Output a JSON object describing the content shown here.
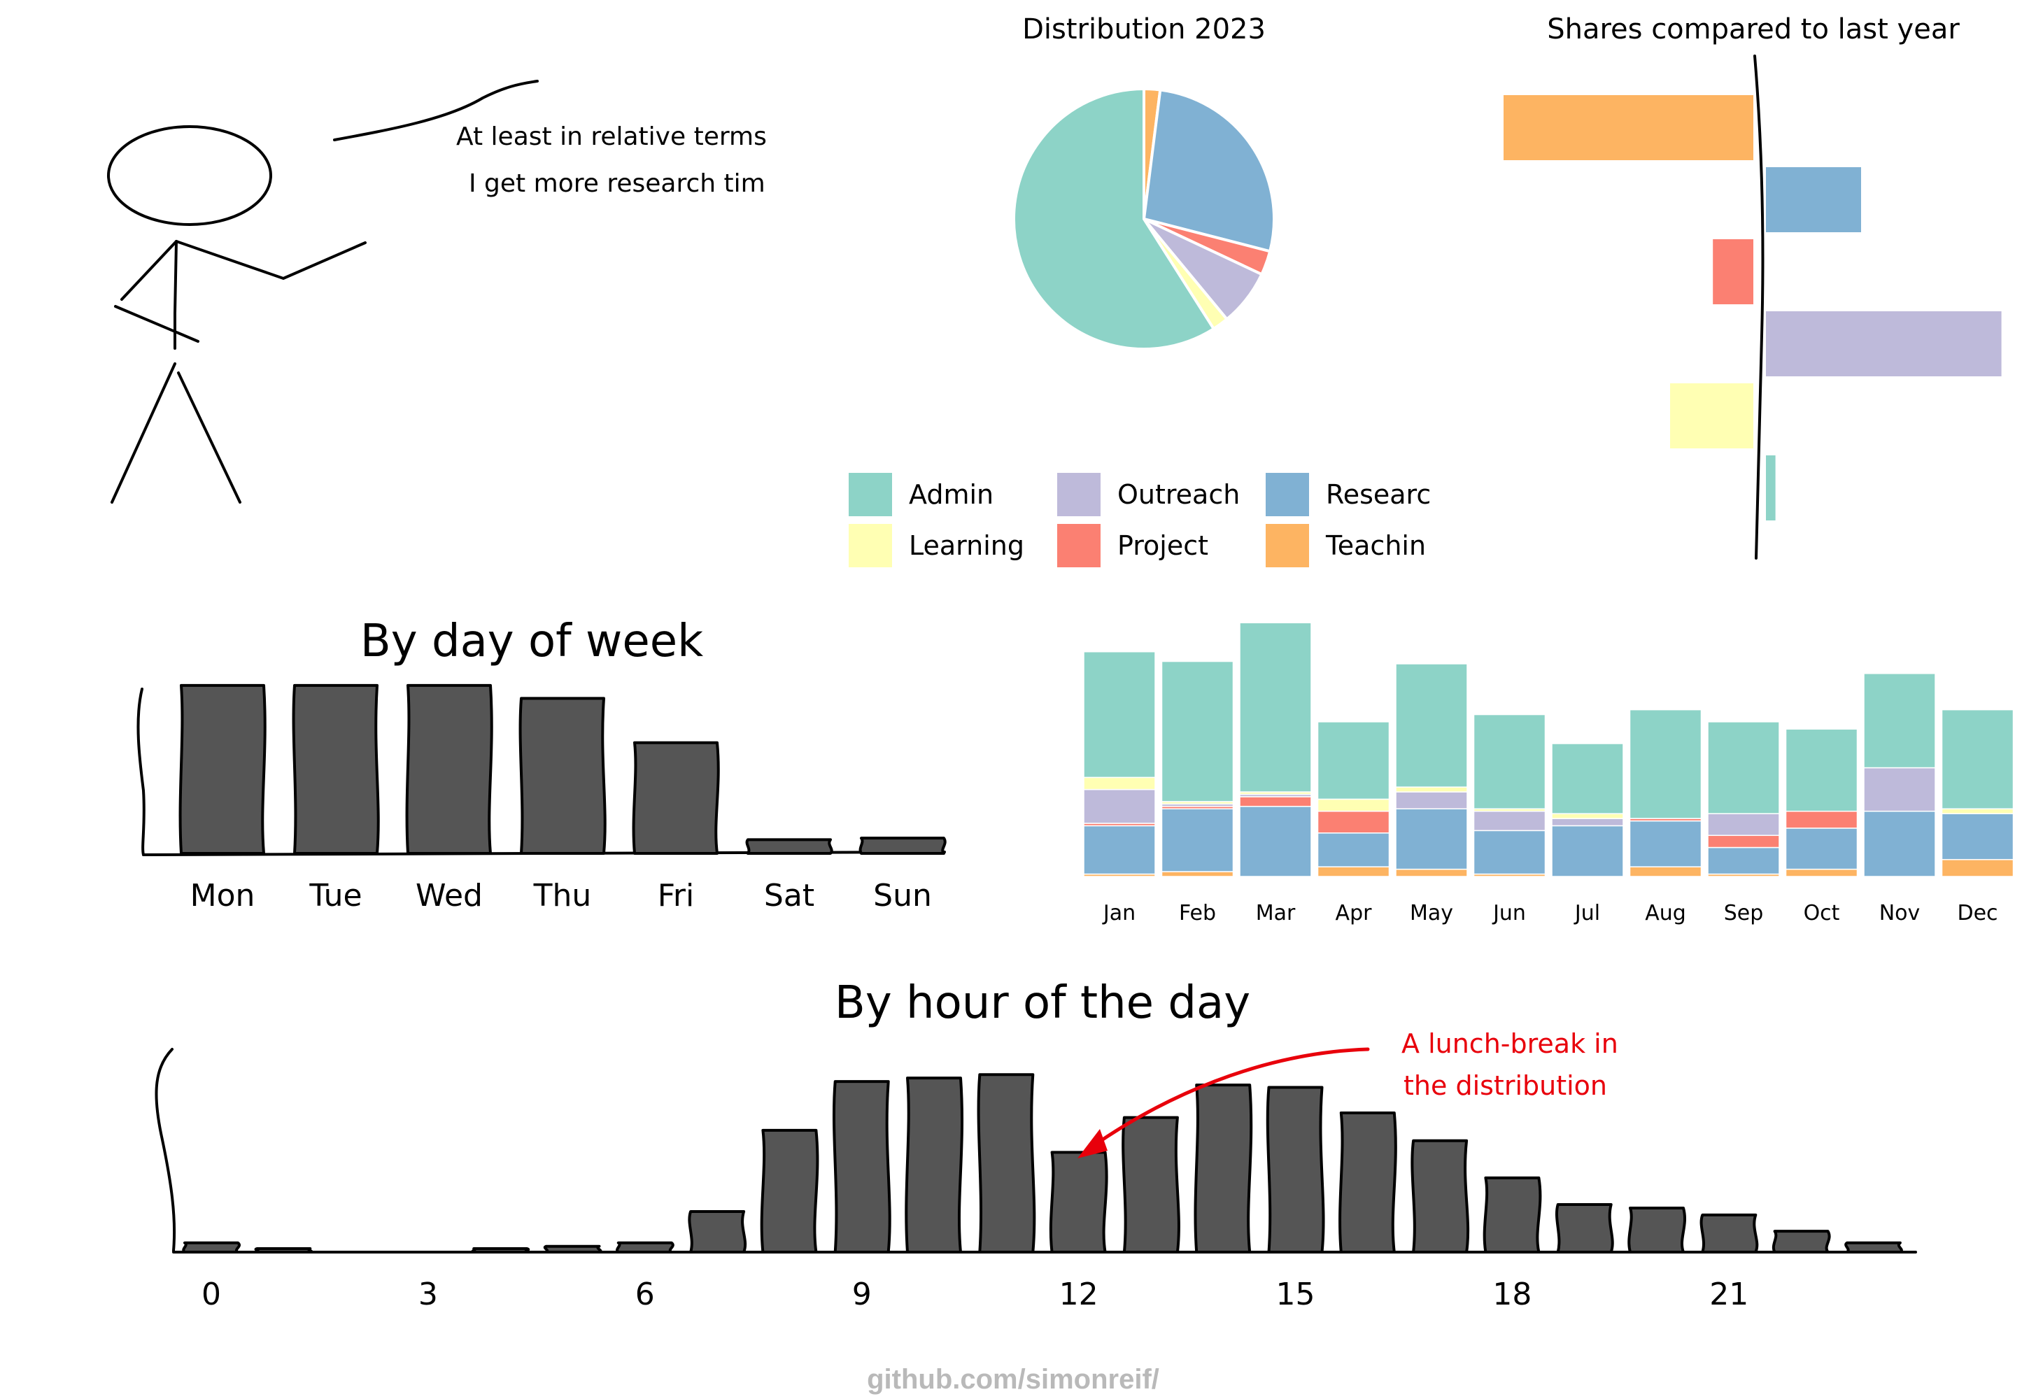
{
  "speech": {
    "line1": "At least in relative terms",
    "line2": "I get more research tim"
  },
  "colors": {
    "Admin": "#8dd3c7",
    "Learning": "#ffffb3",
    "Outreach": "#bebada",
    "Project": "#fb8072",
    "Research": "#80b1d3",
    "Teaching": "#fdb462",
    "bars": "#555555",
    "annotation": "#e8000b"
  },
  "legend": {
    "items": [
      {
        "label": "Admin",
        "key": "Admin"
      },
      {
        "label": "Outreach",
        "key": "Outreach"
      },
      {
        "label": "Researc",
        "key": "Research"
      },
      {
        "label": "Learning",
        "key": "Learning"
      },
      {
        "label": "Project",
        "key": "Project"
      },
      {
        "label": "Teachin",
        "key": "Teaching"
      }
    ]
  },
  "footer": {
    "credit": "github.com/simonreif/"
  },
  "chart_data": [
    {
      "type": "pie",
      "title": "Distribution 2023",
      "slices": [
        {
          "label": "Teaching",
          "value": 2
        },
        {
          "label": "Research",
          "value": 27
        },
        {
          "label": "Project",
          "value": 3
        },
        {
          "label": "Outreach",
          "value": 7
        },
        {
          "label": "Learning",
          "value": 2
        },
        {
          "label": "Admin",
          "value": 59
        }
      ]
    },
    {
      "type": "bar",
      "title": "Shares compared to last year",
      "orientation": "horizontal",
      "categories": [
        "Teaching",
        "Research",
        "Project",
        "Outreach",
        "Learning",
        "Admin"
      ],
      "values": [
        -10.5,
        4.0,
        -1.7,
        9.9,
        -3.5,
        0.4
      ],
      "xlim": [
        -11,
        11
      ]
    },
    {
      "type": "bar",
      "title": "By day of week",
      "categories": [
        "Mon",
        "Tue",
        "Wed",
        "Thu",
        "Fri",
        "Sat",
        "Sun"
      ],
      "values": [
        22.0,
        22.0,
        22.0,
        20.3,
        14.5,
        1.8,
        2.0
      ],
      "ylim": [
        0,
        24
      ]
    },
    {
      "type": "bar",
      "stacked": true,
      "categories": [
        "Jan",
        "Feb",
        "Mar",
        "Apr",
        "May",
        "Jun",
        "Jul",
        "Aug",
        "Sep",
        "Oct",
        "Nov",
        "Dec"
      ],
      "series": [
        {
          "name": "Teaching",
          "values": [
            1,
            2,
            0,
            4,
            3,
            1,
            0,
            4,
            1,
            3,
            0,
            7
          ]
        },
        {
          "name": "Research",
          "values": [
            20,
            26,
            29,
            14,
            25,
            18,
            21,
            19,
            11,
            17,
            27,
            19
          ]
        },
        {
          "name": "Project",
          "values": [
            1,
            1,
            4,
            9,
            0,
            0,
            0,
            1,
            5,
            7,
            0,
            0
          ]
        },
        {
          "name": "Outreach",
          "values": [
            14,
            1,
            1,
            0,
            7,
            8,
            3,
            0,
            9,
            0,
            18,
            0
          ]
        },
        {
          "name": "Learning",
          "values": [
            5,
            1,
            1,
            5,
            2,
            1,
            2,
            0,
            0,
            0,
            0,
            2
          ]
        },
        {
          "name": "Admin",
          "values": [
            52,
            58,
            70,
            32,
            51,
            39,
            29,
            45,
            38,
            34,
            39,
            41
          ]
        }
      ],
      "ylim": [
        0,
        110
      ]
    },
    {
      "type": "bar",
      "title": "By hour of the day",
      "categories": [
        "0",
        "1",
        "2",
        "3",
        "4",
        "5",
        "6",
        "7",
        "8",
        "9",
        "10",
        "11",
        "12",
        "13",
        "14",
        "15",
        "16",
        "17",
        "18",
        "19",
        "20",
        "21",
        "22",
        "23"
      ],
      "tick_labels": [
        "0",
        "3",
        "6",
        "9",
        "12",
        "15",
        "18",
        "21"
      ],
      "values": [
        0.8,
        0.3,
        0,
        0,
        0.3,
        0.5,
        0.8,
        3.5,
        10.5,
        14.7,
        15.0,
        15.3,
        8.6,
        11.6,
        14.4,
        14.2,
        12.0,
        9.6,
        6.4,
        4.1,
        3.8,
        3.2,
        1.8,
        0.8
      ],
      "ylim": [
        0,
        17
      ],
      "annotation": {
        "line1": "A lunch-break in",
        "line2": "the distribution",
        "target": "12"
      }
    }
  ]
}
